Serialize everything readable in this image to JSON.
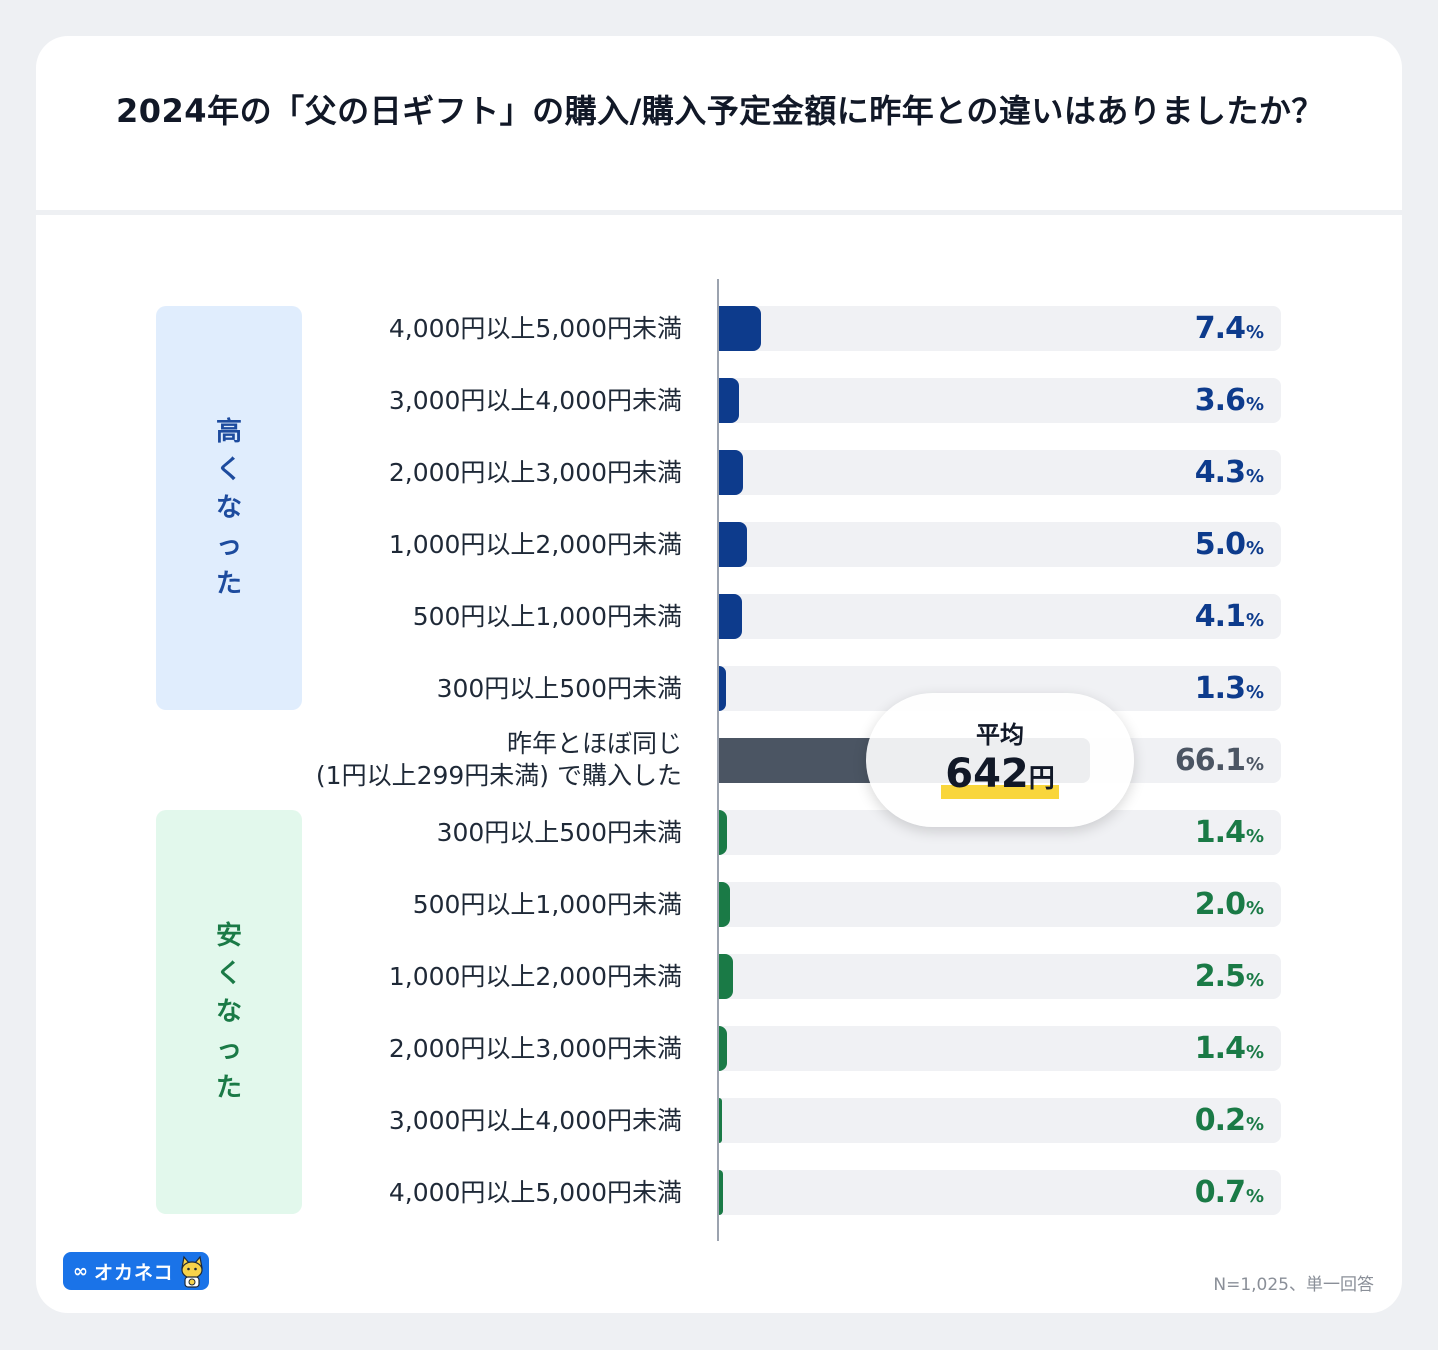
{
  "title": "2024年の「父の日ギフト」の購入/購入予定金額に昨年との違いはありましたか？",
  "groups": {
    "up": {
      "label_chars": [
        "高",
        "く",
        "な",
        "っ",
        "た"
      ]
    },
    "down": {
      "label_chars": [
        "安",
        "く",
        "な",
        "っ",
        "た"
      ]
    }
  },
  "colors": {
    "up": "#0d3b8c",
    "same": "#4b5563",
    "same_text": "#4b5563",
    "down": "#1a7a46",
    "track": "#f0f1f4"
  },
  "chart_data": {
    "type": "bar",
    "orientation": "horizontal",
    "xlim": [
      0,
      100
    ],
    "unit": "%",
    "rows": [
      {
        "label": "4,000円以上5,000円未満",
        "value": 7.4,
        "display": "7.4",
        "group": "up"
      },
      {
        "label": "3,000円以上4,000円未満",
        "value": 3.6,
        "display": "3.6",
        "group": "up"
      },
      {
        "label": "2,000円以上3,000円未満",
        "value": 4.3,
        "display": "4.3",
        "group": "up"
      },
      {
        "label": "1,000円以上2,000円未満",
        "value": 5.0,
        "display": "5.0",
        "group": "up"
      },
      {
        "label": "500円以上1,000円未満",
        "value": 4.1,
        "display": "4.1",
        "group": "up"
      },
      {
        "label": "300円以上500円未満",
        "value": 1.3,
        "display": "1.3",
        "group": "up"
      },
      {
        "label": "昨年とほぼ同じ",
        "label2": "(1円以上299円未満) で購入した",
        "value": 66.1,
        "display": "66.1",
        "group": "same"
      },
      {
        "label": "300円以上500円未満",
        "value": 1.4,
        "display": "1.4",
        "group": "down"
      },
      {
        "label": "500円以上1,000円未満",
        "value": 2.0,
        "display": "2.0",
        "group": "down"
      },
      {
        "label": "1,000円以上2,000円未満",
        "value": 2.5,
        "display": "2.5",
        "group": "down"
      },
      {
        "label": "2,000円以上3,000円未満",
        "value": 1.4,
        "display": "1.4",
        "group": "down"
      },
      {
        "label": "3,000円以上4,000円未満",
        "value": 0.2,
        "display": "0.2",
        "group": "down"
      },
      {
        "label": "4,000円以上5,000円未満",
        "value": 0.7,
        "display": "0.7",
        "group": "down"
      }
    ]
  },
  "average": {
    "label": "平均",
    "value": "642",
    "unit": "円"
  },
  "logo": {
    "mark": "∞",
    "text": "オカネコ"
  },
  "footnote": "N=1,025、単一回答"
}
